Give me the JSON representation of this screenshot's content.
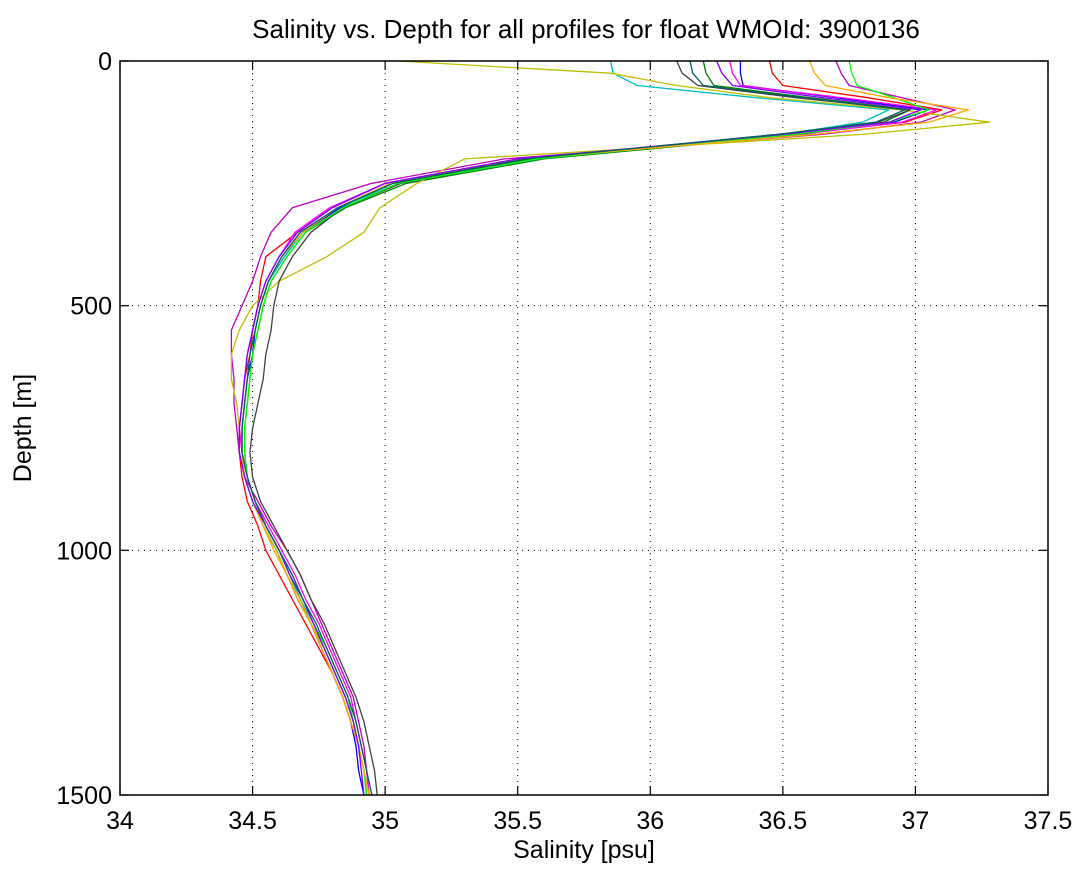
{
  "chart_data": {
    "type": "line",
    "title": "Salinity vs. Depth for all profiles for float WMOId: 3900136",
    "xlabel": "Salinity [psu]",
    "ylabel": "Depth [m]",
    "xlim": [
      34,
      37.5
    ],
    "ylim": [
      0,
      1500
    ],
    "y_reversed": true,
    "grid": true,
    "x_ticks": [
      34,
      34.5,
      35,
      35.5,
      36,
      36.5,
      37,
      37.5
    ],
    "x_tick_labels": [
      "34",
      "34.5",
      "35",
      "35.5",
      "36",
      "36.5",
      "37",
      "37.5"
    ],
    "y_ticks": [
      0,
      500,
      1000,
      1500
    ],
    "y_tick_labels": [
      "0",
      "500",
      "1000",
      "1500"
    ],
    "depths": [
      0,
      25,
      50,
      75,
      100,
      125,
      150,
      200,
      250,
      300,
      350,
      400,
      450,
      500,
      550,
      600,
      650,
      700,
      750,
      800,
      850,
      900,
      950,
      1000,
      1050,
      1100,
      1150,
      1200,
      1250,
      1300,
      1350,
      1400,
      1450,
      1500
    ],
    "series": [
      {
        "color": "#0000ff",
        "salinity": [
          36.34,
          36.34,
          36.35,
          36.7,
          37.05,
          36.92,
          36.48,
          35.55,
          35.02,
          34.83,
          34.69,
          34.62,
          34.56,
          34.53,
          34.51,
          34.5,
          34.48,
          34.47,
          34.46,
          34.46,
          34.47,
          34.5,
          34.54,
          34.59,
          34.63,
          34.67,
          34.72,
          34.76,
          34.8,
          34.84,
          34.87,
          34.89,
          34.9,
          34.92
        ]
      },
      {
        "color": "#008000",
        "salinity": [
          36.2,
          36.21,
          36.24,
          36.6,
          36.98,
          36.88,
          36.58,
          35.6,
          35.08,
          34.85,
          34.7,
          34.63,
          34.57,
          34.54,
          34.52,
          34.5,
          34.49,
          34.48,
          34.47,
          34.47,
          34.48,
          34.51,
          34.55,
          34.6,
          34.64,
          34.68,
          34.72,
          34.77,
          34.81,
          34.85,
          34.88,
          34.9,
          34.92,
          34.93
        ]
      },
      {
        "color": "#ff0000",
        "salinity": [
          36.45,
          36.46,
          36.5,
          36.82,
          37.1,
          36.96,
          36.55,
          35.5,
          35.0,
          34.8,
          34.67,
          34.55,
          34.53,
          34.52,
          34.5,
          34.49,
          34.47,
          34.46,
          34.45,
          34.45,
          34.46,
          34.48,
          34.52,
          34.55,
          34.6,
          34.65,
          34.7,
          34.75,
          34.8,
          34.84,
          34.87,
          34.9,
          34.92,
          34.94
        ]
      },
      {
        "color": "#00bfbf",
        "salinity": [
          35.85,
          35.86,
          35.95,
          36.4,
          36.9,
          36.8,
          36.5,
          35.58,
          35.05,
          34.82,
          34.69,
          34.62,
          34.56,
          34.53,
          34.51,
          34.49,
          34.48,
          34.47,
          34.46,
          34.46,
          34.48,
          34.51,
          34.55,
          34.6,
          34.64,
          34.68,
          34.73,
          34.77,
          34.81,
          34.85,
          34.88,
          34.9,
          34.92,
          34.93
        ]
      },
      {
        "color": "#bf00bf",
        "salinity": [
          36.7,
          36.72,
          36.75,
          36.95,
          37.15,
          37.02,
          36.65,
          35.45,
          34.95,
          34.65,
          34.57,
          34.53,
          34.5,
          34.46,
          34.42,
          34.42,
          34.43,
          34.43,
          34.44,
          34.45,
          34.47,
          34.52,
          34.57,
          34.63,
          34.68,
          34.72,
          34.76,
          34.8,
          34.84,
          34.88,
          34.9,
          34.92,
          34.93,
          34.94
        ]
      },
      {
        "color": "#bfbf00",
        "salinity": [
          35.05,
          35.85,
          36.1,
          36.45,
          36.95,
          37.28,
          36.8,
          35.3,
          35.12,
          34.98,
          34.92,
          34.78,
          34.6,
          34.5,
          34.45,
          34.42,
          34.42,
          34.44,
          34.45,
          34.46,
          34.47,
          34.5,
          34.54,
          34.59,
          34.63,
          34.68,
          34.72,
          34.77,
          34.81,
          34.85,
          34.88,
          34.9,
          34.92,
          34.93
        ]
      },
      {
        "color": "#404040",
        "salinity": [
          36.1,
          36.12,
          36.18,
          36.55,
          36.98,
          36.86,
          36.52,
          35.55,
          35.06,
          34.84,
          34.72,
          34.65,
          34.6,
          34.58,
          34.57,
          34.55,
          34.54,
          34.52,
          34.5,
          34.49,
          34.5,
          34.53,
          34.58,
          34.63,
          34.68,
          34.72,
          34.77,
          34.81,
          34.85,
          34.89,
          34.92,
          34.94,
          34.96,
          34.97
        ]
      },
      {
        "color": "#ff00ff",
        "salinity": [
          36.3,
          36.31,
          36.34,
          36.72,
          37.08,
          36.95,
          36.56,
          35.52,
          35.0,
          34.79,
          34.66,
          34.6,
          34.55,
          34.52,
          34.5,
          34.48,
          34.47,
          34.46,
          34.45,
          34.46,
          34.48,
          34.51,
          34.56,
          34.61,
          34.66,
          34.7,
          34.75,
          34.79,
          34.83,
          34.87,
          34.89,
          34.91,
          34.93,
          34.94
        ]
      },
      {
        "color": "#00ff00",
        "salinity": [
          36.75,
          36.76,
          36.78,
          36.92,
          37.05,
          36.9,
          36.55,
          35.57,
          35.05,
          34.84,
          34.7,
          34.63,
          34.57,
          34.54,
          34.52,
          34.5,
          34.49,
          34.48,
          34.47,
          34.47,
          34.48,
          34.51,
          34.55,
          34.6,
          34.65,
          34.69,
          34.73,
          34.78,
          34.82,
          34.86,
          34.88,
          34.9,
          34.92,
          34.93
        ]
      },
      {
        "color": "#ffaa00",
        "salinity": [
          36.6,
          36.62,
          36.66,
          36.9,
          37.2,
          37.05,
          36.62,
          35.52,
          35.02,
          34.82,
          34.69,
          34.61,
          34.56,
          34.53,
          34.51,
          34.49,
          34.48,
          34.47,
          34.46,
          34.46,
          34.47,
          34.5,
          34.54,
          34.58,
          34.63,
          34.67,
          34.72,
          34.76,
          34.8,
          34.84,
          34.87,
          34.9,
          34.92,
          34.94
        ]
      },
      {
        "color": "#8000ff",
        "salinity": [
          36.25,
          36.27,
          36.31,
          36.65,
          37.02,
          36.9,
          36.5,
          35.5,
          35.0,
          34.8,
          34.67,
          34.6,
          34.55,
          34.52,
          34.5,
          34.48,
          34.47,
          34.46,
          34.45,
          34.45,
          34.47,
          34.5,
          34.55,
          34.6,
          34.64,
          34.69,
          34.73,
          34.77,
          34.81,
          34.85,
          34.88,
          34.9,
          34.91,
          34.92
        ]
      },
      {
        "color": "#006060",
        "salinity": [
          36.15,
          36.16,
          36.2,
          36.58,
          36.96,
          36.85,
          36.48,
          35.53,
          35.03,
          34.82,
          34.68,
          34.61,
          34.56,
          34.53,
          34.51,
          34.49,
          34.48,
          34.47,
          34.46,
          34.46,
          34.48,
          34.51,
          34.55,
          34.6,
          34.65,
          34.69,
          34.74,
          34.78,
          34.82,
          34.86,
          34.89,
          34.91,
          34.93,
          34.95
        ]
      }
    ]
  }
}
